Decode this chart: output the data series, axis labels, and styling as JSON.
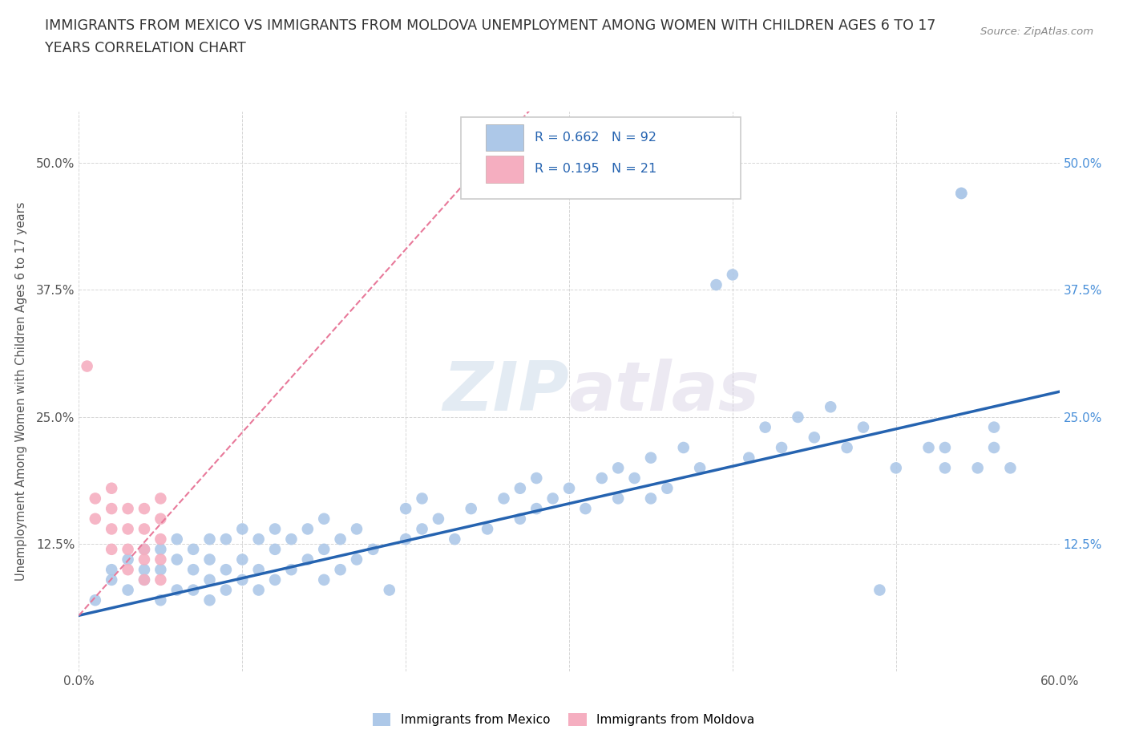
{
  "title_line1": "IMMIGRANTS FROM MEXICO VS IMMIGRANTS FROM MOLDOVA UNEMPLOYMENT AMONG WOMEN WITH CHILDREN AGES 6 TO 17",
  "title_line2": "YEARS CORRELATION CHART",
  "source": "Source: ZipAtlas.com",
  "ylabel": "Unemployment Among Women with Children Ages 6 to 17 years",
  "xlim": [
    0.0,
    0.6
  ],
  "ylim": [
    0.0,
    0.55
  ],
  "xticks": [
    0.0,
    0.1,
    0.2,
    0.3,
    0.4,
    0.5,
    0.6
  ],
  "xticklabels": [
    "0.0%",
    "",
    "",
    "",
    "",
    "",
    "60.0%"
  ],
  "yticks": [
    0.0,
    0.125,
    0.25,
    0.375,
    0.5
  ],
  "yticklabels_left": [
    "",
    "12.5%",
    "25.0%",
    "37.5%",
    "50.0%"
  ],
  "yticklabels_right": [
    "",
    "12.5%",
    "25.0%",
    "37.5%",
    "50.0%"
  ],
  "mexico_R": 0.662,
  "mexico_N": 92,
  "moldova_R": 0.195,
  "moldova_N": 21,
  "mexico_color": "#adc8e8",
  "moldova_color": "#f5aec0",
  "mexico_line_color": "#2563b0",
  "moldova_line_color": "#e8799a",
  "background_color": "#ffffff",
  "legend_border_color": "#cccccc",
  "tick_color": "#4a90d9",
  "grid_color": "#cccccc",
  "watermark_color": "#d0dce8",
  "mexico_x": [
    0.01,
    0.02,
    0.02,
    0.03,
    0.03,
    0.04,
    0.04,
    0.04,
    0.05,
    0.05,
    0.05,
    0.06,
    0.06,
    0.06,
    0.07,
    0.07,
    0.07,
    0.08,
    0.08,
    0.08,
    0.08,
    0.09,
    0.09,
    0.09,
    0.1,
    0.1,
    0.1,
    0.11,
    0.11,
    0.11,
    0.12,
    0.12,
    0.12,
    0.13,
    0.13,
    0.14,
    0.14,
    0.15,
    0.15,
    0.15,
    0.16,
    0.16,
    0.17,
    0.17,
    0.18,
    0.19,
    0.2,
    0.2,
    0.21,
    0.21,
    0.22,
    0.23,
    0.24,
    0.25,
    0.26,
    0.27,
    0.27,
    0.28,
    0.28,
    0.29,
    0.3,
    0.31,
    0.32,
    0.33,
    0.33,
    0.34,
    0.35,
    0.35,
    0.36,
    0.37,
    0.38,
    0.39,
    0.4,
    0.41,
    0.42,
    0.43,
    0.44,
    0.45,
    0.46,
    0.47,
    0.48,
    0.49,
    0.5,
    0.52,
    0.53,
    0.53,
    0.54,
    0.54,
    0.55,
    0.56,
    0.56,
    0.57
  ],
  "mexico_y": [
    0.07,
    0.09,
    0.1,
    0.08,
    0.11,
    0.09,
    0.1,
    0.12,
    0.07,
    0.1,
    0.12,
    0.08,
    0.11,
    0.13,
    0.08,
    0.1,
    0.12,
    0.07,
    0.09,
    0.11,
    0.13,
    0.08,
    0.1,
    0.13,
    0.09,
    0.11,
    0.14,
    0.08,
    0.1,
    0.13,
    0.09,
    0.12,
    0.14,
    0.1,
    0.13,
    0.11,
    0.14,
    0.09,
    0.12,
    0.15,
    0.1,
    0.13,
    0.11,
    0.14,
    0.12,
    0.08,
    0.13,
    0.16,
    0.14,
    0.17,
    0.15,
    0.13,
    0.16,
    0.14,
    0.17,
    0.15,
    0.18,
    0.16,
    0.19,
    0.17,
    0.18,
    0.16,
    0.19,
    0.17,
    0.2,
    0.19,
    0.17,
    0.21,
    0.18,
    0.22,
    0.2,
    0.38,
    0.39,
    0.21,
    0.24,
    0.22,
    0.25,
    0.23,
    0.26,
    0.22,
    0.24,
    0.08,
    0.2,
    0.22,
    0.2,
    0.22,
    0.47,
    0.47,
    0.2,
    0.22,
    0.24,
    0.2
  ],
  "moldova_x": [
    0.005,
    0.01,
    0.01,
    0.02,
    0.02,
    0.02,
    0.02,
    0.03,
    0.03,
    0.03,
    0.03,
    0.04,
    0.04,
    0.04,
    0.04,
    0.04,
    0.05,
    0.05,
    0.05,
    0.05,
    0.05
  ],
  "moldova_y": [
    0.3,
    0.15,
    0.17,
    0.12,
    0.14,
    0.16,
    0.18,
    0.1,
    0.12,
    0.14,
    0.16,
    0.09,
    0.11,
    0.12,
    0.14,
    0.16,
    0.09,
    0.11,
    0.13,
    0.15,
    0.17
  ],
  "moldova_line_x": [
    0.0,
    0.6
  ],
  "moldova_line_slope": 1.8,
  "moldova_line_intercept": 0.055
}
